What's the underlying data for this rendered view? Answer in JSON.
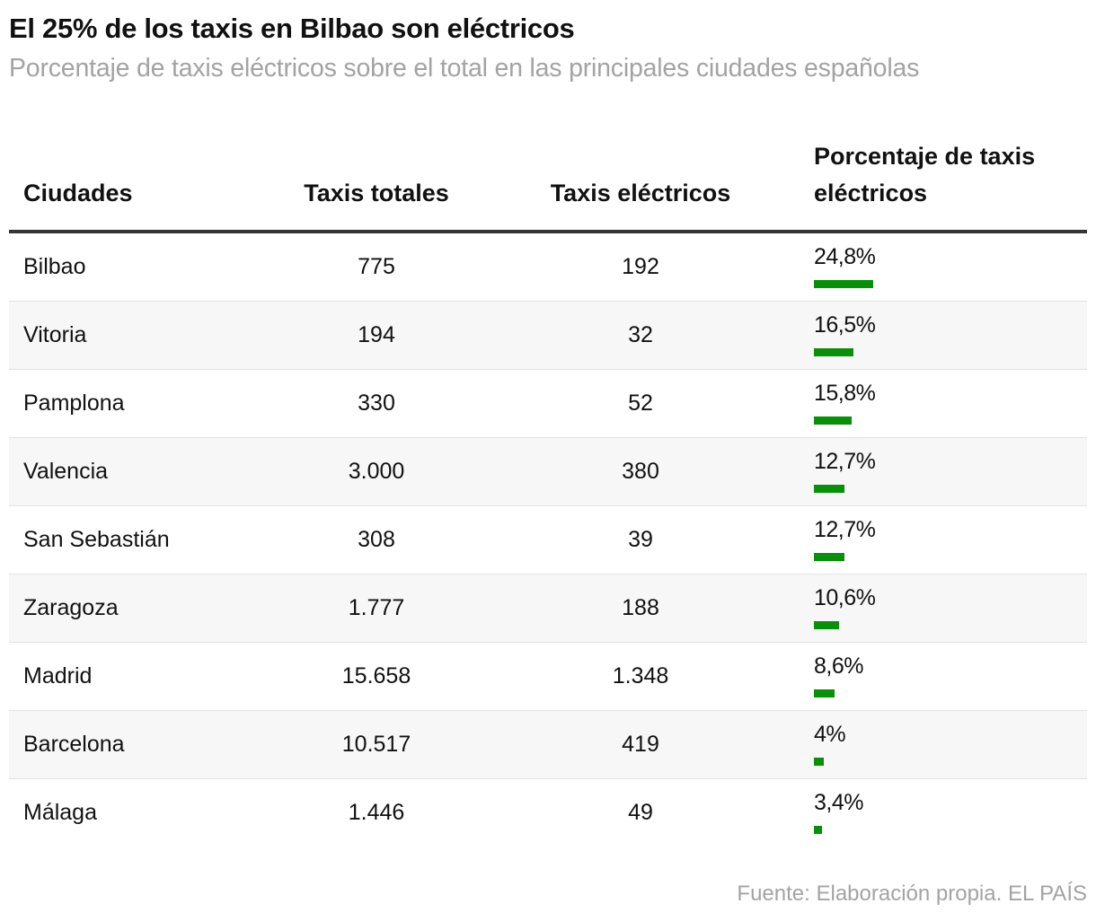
{
  "title": "El 25% de los taxis en Bilbao son eléctricos",
  "subtitle": "Porcentaje de taxis eléctricos sobre el total en las principales ciudades españolas",
  "source": "Fuente: Elaboración propia. EL PAÍS",
  "colors": {
    "bar": "#0a8f0a",
    "subtitle": "#a3a3a3",
    "stripe": "#f7f7f7"
  },
  "chart_data": {
    "type": "table",
    "columns": [
      "Ciudades",
      "Taxis totales",
      "Taxis eléctricos",
      "Porcentaje de taxis eléctricos"
    ],
    "rows": [
      {
        "city": "Bilbao",
        "total": "775",
        "electric": "192",
        "pct_label": "24,8%",
        "pct": 24.8
      },
      {
        "city": "Vitoria",
        "total": "194",
        "electric": "32",
        "pct_label": "16,5%",
        "pct": 16.5
      },
      {
        "city": "Pamplona",
        "total": "330",
        "electric": "52",
        "pct_label": "15,8%",
        "pct": 15.8
      },
      {
        "city": "Valencia",
        "total": "3.000",
        "electric": "380",
        "pct_label": "12,7%",
        "pct": 12.7
      },
      {
        "city": "San Sebastián",
        "total": "308",
        "electric": "39",
        "pct_label": "12,7%",
        "pct": 12.7
      },
      {
        "city": "Zaragoza",
        "total": "1.777",
        "electric": "188",
        "pct_label": "10,6%",
        "pct": 10.6
      },
      {
        "city": "Madrid",
        "total": "15.658",
        "electric": "1.348",
        "pct_label": "8,6%",
        "pct": 8.6
      },
      {
        "city": "Barcelona",
        "total": "10.517",
        "electric": "419",
        "pct_label": "4%",
        "pct": 4
      },
      {
        "city": "Málaga",
        "total": "1.446",
        "electric": "49",
        "pct_label": "3,4%",
        "pct": 3.4
      }
    ]
  }
}
